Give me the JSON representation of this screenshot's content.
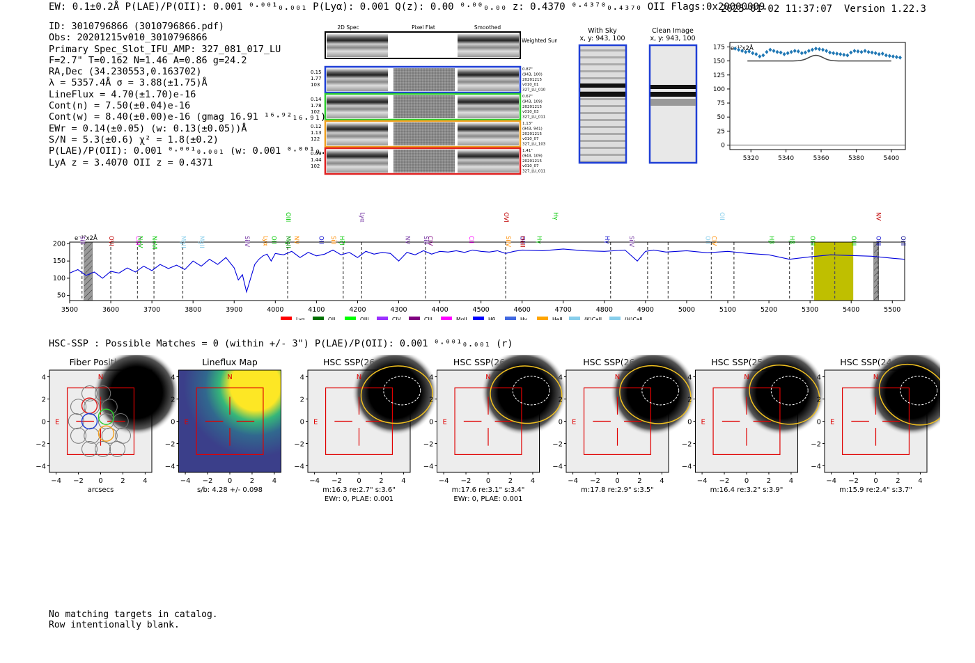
{
  "header": {
    "left_line": "EW: 0.1±0.2Å  P(LAE)/P(OII): 0.001 ⁰·⁰⁰¹₀.₀₀₁  P(Lyα): 0.001  Q(z): 0.00 ⁰·⁰⁰₀.₀₀  z: 0.4370 ⁰·⁴³⁷⁰₀.₄₃₇₀ OII   Flags:0x20000009",
    "datetime": "2025-01-02 11:37:07",
    "version": "Version 1.22.3"
  },
  "info": {
    "lines": [
      "ID: 3010796866 (3010796866.pdf)",
      "Obs: 20201215v010_3010796866",
      "Primary Spec_Slot_IFU_AMP: 327_081_017_LU",
      "F=2.7\"  T=0.162  N=1.46  A=0.86  g=24.2",
      "RA,Dec (34.230553,0.163702)",
      "λ = 5357.4Å   σ = 3.88(±1.75)Å",
      "LineFlux = 4.70(±1.70)e-16",
      "Cont(n) = 7.50(±0.04)e-16",
      "Cont(w) = 8.40(±0.00)e-16 (gmag 16.91 ¹⁶·⁹²₁₆.₉₁)",
      "EWr = 0.14(±0.05) (w: 0.13(±0.05))Å",
      "S/N = 5.3(±0.6)  χ² = 1.8(±0.2)",
      "P(LAE)/P(OII): 0.001 ⁰·⁰⁰¹₀.₀₀₁ (w: 0.001 ⁰·⁰⁰¹₀.₀₀₁)",
      "LyA z = 3.4070  OII z = 0.4371"
    ]
  },
  "cutouts": {
    "col_labels": [
      "2D Spec",
      "Pixel Flat",
      "Smoothed"
    ],
    "weighted_sum_label": "Weighted Sum",
    "rows": [
      {
        "left": [
          "0.15",
          "1.77",
          "103"
        ],
        "right": [
          "0.87\"",
          "(943, 100)",
          "20201215",
          "v010_01",
          "327_LU_010"
        ],
        "color": "#1f3fd6"
      },
      {
        "left": [
          "0.14",
          "1.78",
          "102"
        ],
        "right": [
          "0.67\"",
          "(943, 109)",
          "20201215",
          "v010_03",
          "327_LU_011"
        ],
        "color": "#2ecc2e"
      },
      {
        "left": [
          "0.12",
          "1.13",
          "122"
        ],
        "right": [
          "1.13\"",
          "(943, 941)",
          "20201215",
          "v010_07",
          "327_LU_103"
        ],
        "color": "#f0a020"
      },
      {
        "left": [
          "0.09",
          "1.44",
          "102"
        ],
        "right": [
          "1.41\"",
          "(943, 109)",
          "20201215",
          "v010_07",
          "327_LU_011"
        ],
        "color": "#e02020"
      }
    ]
  },
  "sky_panels": [
    {
      "title": "With Sky",
      "subtitle": "x, y: 943, 100"
    },
    {
      "title": "Clean Image",
      "subtitle": "x, y: 943, 100"
    }
  ],
  "zoom_chart": {
    "unit_label": "e⁻¹⁷x2Å",
    "yticks": [
      "0",
      "25",
      "50",
      "75",
      "100",
      "125",
      "150",
      "175"
    ],
    "xticks": [
      "5320",
      "5340",
      "5360",
      "5380",
      "5400"
    ]
  },
  "chart_data": [
    {
      "type": "scatter",
      "title": "zoom spectrum",
      "xlim": [
        5308,
        5408
      ],
      "ylim": [
        -8,
        183
      ],
      "x": [
        5311,
        5313,
        5315,
        5317,
        5319,
        5321,
        5323,
        5325,
        5327,
        5329,
        5331,
        5333,
        5335,
        5337,
        5339,
        5341,
        5343,
        5345,
        5347,
        5349,
        5351,
        5353,
        5355,
        5357,
        5359,
        5361,
        5363,
        5365,
        5367,
        5369,
        5371,
        5373,
        5375,
        5377,
        5379,
        5381,
        5383,
        5385,
        5387,
        5389,
        5391,
        5393,
        5395,
        5397,
        5399,
        5401,
        5403,
        5405
      ],
      "y": [
        172,
        170,
        168,
        166,
        167,
        164,
        162,
        158,
        160,
        166,
        170,
        168,
        166,
        165,
        162,
        164,
        166,
        168,
        167,
        164,
        165,
        168,
        170,
        172,
        171,
        170,
        168,
        165,
        164,
        163,
        162,
        161,
        160,
        165,
        168,
        167,
        166,
        168,
        166,
        165,
        164,
        162,
        163,
        160,
        159,
        158,
        157,
        156
      ],
      "fit_line": {
        "x0": 5318,
        "x1": 5400,
        "base": 150,
        "peak": 160,
        "center": 5357,
        "sigma": 4
      }
    },
    {
      "type": "line",
      "title": "full spectrum",
      "unit_label": "e⁻¹⁷x2Å",
      "xlim": [
        3500,
        5530
      ],
      "ylim": [
        35,
        205
      ],
      "xticks": [
        3500,
        3600,
        3700,
        3800,
        3900,
        4000,
        4100,
        4200,
        4300,
        4400,
        4500,
        4600,
        4700,
        4800,
        4900,
        5000,
        5100,
        5200,
        5300,
        5400,
        5500
      ],
      "yticks": [
        50,
        100,
        150,
        200
      ],
      "x": [
        3500,
        3520,
        3540,
        3560,
        3580,
        3600,
        3620,
        3640,
        3660,
        3680,
        3700,
        3720,
        3740,
        3760,
        3780,
        3800,
        3820,
        3840,
        3860,
        3880,
        3900,
        3910,
        3920,
        3930,
        3940,
        3950,
        3960,
        3970,
        3980,
        3990,
        4000,
        4020,
        4040,
        4060,
        4080,
        4100,
        4120,
        4140,
        4160,
        4180,
        4200,
        4220,
        4240,
        4260,
        4280,
        4300,
        4320,
        4340,
        4360,
        4380,
        4400,
        4420,
        4440,
        4460,
        4480,
        4500,
        4520,
        4540,
        4560,
        4580,
        4600,
        4650,
        4700,
        4750,
        4800,
        4850,
        4880,
        4900,
        4920,
        4950,
        5000,
        5050,
        5100,
        5150,
        5200,
        5250,
        5300,
        5350,
        5400,
        5450,
        5500,
        5530
      ],
      "y": [
        115,
        125,
        108,
        118,
        100,
        120,
        115,
        130,
        118,
        135,
        122,
        140,
        128,
        138,
        125,
        150,
        135,
        155,
        140,
        160,
        130,
        95,
        110,
        60,
        100,
        140,
        155,
        165,
        170,
        150,
        172,
        168,
        178,
        160,
        175,
        165,
        170,
        182,
        168,
        175,
        160,
        178,
        170,
        175,
        172,
        150,
        175,
        168,
        180,
        170,
        178,
        176,
        180,
        175,
        182,
        178,
        176,
        180,
        172,
        178,
        182,
        180,
        185,
        180,
        178,
        182,
        150,
        178,
        182,
        176,
        180,
        174,
        178,
        172,
        168,
        155,
        162,
        168,
        166,
        164,
        158,
        155
      ],
      "lines": [
        {
          "name": "SiII",
          "x": 3530,
          "color": "#7030a0"
        },
        {
          "name": "OVI",
          "x": 3600,
          "color": "#c00000"
        },
        {
          "name": "CIII",
          "x": 3665,
          "color": "#ff00ff"
        },
        {
          "name": "NeV",
          "x": 3670,
          "color": "#00c800"
        },
        {
          "name": "NeVI",
          "x": 3705,
          "color": "#00c800"
        },
        {
          "name": "MgII",
          "x": 3775,
          "color": "#87ceeb"
        },
        {
          "name": "MgII",
          "x": 3820,
          "color": "#87ceeb"
        },
        {
          "name": "SiIV",
          "x": 3930,
          "color": "#7030a0"
        },
        {
          "name": "Lyα",
          "x": 3975,
          "color": "#ff8c00"
        },
        {
          "name": "OII",
          "x": 3995,
          "color": "#00c800"
        },
        {
          "name": "NV",
          "x": 4050,
          "color": "#ff8c00"
        },
        {
          "name": "OIII",
          "x": 4030,
          "color": "#00c800"
        },
        {
          "name": "MgII",
          "x": 4030,
          "color": "#009000"
        },
        {
          "name": "OII",
          "x": 4110,
          "color": "#0000cc"
        },
        {
          "name": "SiII",
          "x": 4140,
          "color": "#ff8c00"
        },
        {
          "name": "HζI",
          "x": 4160,
          "color": "#00c800"
        },
        {
          "name": "Lyα",
          "x": 4210,
          "color": "#7030a0"
        },
        {
          "name": "NV",
          "x": 4320,
          "color": "#7030a0"
        },
        {
          "name": "CIV",
          "x": 4375,
          "color": "#800080"
        },
        {
          "name": "SiII",
          "x": 4365,
          "color": "#7030a0"
        },
        {
          "name": "CII",
          "x": 4475,
          "color": "#ff00ff"
        },
        {
          "name": "OVI",
          "x": 4560,
          "color": "#c00000"
        },
        {
          "name": "SiIV",
          "x": 4565,
          "color": "#ff8c00"
        },
        {
          "name": "OII",
          "x": 4600,
          "color": "#0000cc"
        },
        {
          "name": "HeII",
          "x": 4600,
          "color": "#c00000"
        },
        {
          "name": "Hγ",
          "x": 4640,
          "color": "#00c800"
        },
        {
          "name": "Hγ",
          "x": 4680,
          "color": "#00c800"
        },
        {
          "name": "Hγ",
          "x": 4805,
          "color": "#0000cc"
        },
        {
          "name": "SiIV",
          "x": 4865,
          "color": "#7030a0"
        },
        {
          "name": "OII",
          "x": 5050,
          "color": "#87ceeb"
        },
        {
          "name": "CIV",
          "x": 5065,
          "color": "#ff8c00"
        },
        {
          "name": "OII",
          "x": 5085,
          "color": "#87ceeb"
        },
        {
          "name": "Hβ",
          "x": 5205,
          "color": "#00c800"
        },
        {
          "name": "Hβ",
          "x": 5255,
          "color": "#00c800"
        },
        {
          "name": "OIII",
          "x": 5305,
          "color": "#00c800"
        },
        {
          "name": "OIII",
          "x": 5405,
          "color": "#00c800"
        },
        {
          "name": "NV",
          "x": 5465,
          "color": "#c00000"
        },
        {
          "name": "OIII",
          "x": 5465,
          "color": "#0000cc"
        },
        {
          "name": "OIII",
          "x": 5525,
          "color": "#00008b"
        }
      ],
      "dashed_lines": [
        3530,
        3600,
        3665,
        3705,
        3775,
        4030,
        4165,
        4210,
        4365,
        4560,
        4815,
        4905,
        4955,
        5060,
        5115,
        5250,
        5305,
        5360,
        5465
      ],
      "highlight_band": [
        5310,
        5405
      ],
      "hatched_bands": [
        [
          3535,
          3555
        ],
        [
          5455,
          5467
        ]
      ],
      "legend": [
        {
          "label": "Lyα",
          "color": "#ff0000"
        },
        {
          "label": "OII",
          "color": "#007000"
        },
        {
          "label": "OIII",
          "color": "#00ff00"
        },
        {
          "label": "CIV",
          "color": "#9b30ff"
        },
        {
          "label": "CIII",
          "color": "#800080"
        },
        {
          "label": "MgII",
          "color": "#ff00ff"
        },
        {
          "label": "Hβ",
          "color": "#0000ff"
        },
        {
          "label": "Hγ",
          "color": "#4169e1"
        },
        {
          "label": "HeII",
          "color": "#ffa500"
        },
        {
          "label": "(K)CaII",
          "color": "#87ceeb"
        },
        {
          "label": "(H)CaII",
          "color": "#87ceeb"
        }
      ]
    }
  ],
  "hsc": {
    "title_line": "HSC-SSP : Possible Matches = 0 (within +/- 3\")  P(LAE)/P(OII): 0.001 ⁰·⁰⁰¹₀.₀₀₁ (r)",
    "xticks": [
      "−4",
      "−2",
      "0",
      "2",
      "4"
    ],
    "yticks": [
      "4",
      "2",
      "0",
      "−2",
      "−4"
    ],
    "north": "N",
    "east": "E",
    "panels": [
      {
        "title": "Fiber Positions",
        "caption1": "arcsecs",
        "caption2": ""
      },
      {
        "title": "Lineflux Map",
        "caption1": "s/b: 4.28 +/- 0.098",
        "caption2": ""
      },
      {
        "title": "HSC SSP(26.8) g",
        "caption1": "m:16.3  re:2.7\"  s:3.6\"",
        "caption2": "EWr: 0, PLAE: 0.001"
      },
      {
        "title": "HSC SSP(26.4) r",
        "caption1": "m:17.6  re:3.1\"  s:3.4\"",
        "caption2": "EWr: 0, PLAE: 0.001"
      },
      {
        "title": "HSC SSP(26.4) i",
        "caption1": "m:17.8  re:2.9\"  s:3.5\"",
        "caption2": ""
      },
      {
        "title": "HSC SSP(25.5) z",
        "caption1": "m:16.4  re:3.2\"  s:3.9\"",
        "caption2": ""
      },
      {
        "title": "HSC SSP(24.7) y",
        "caption1": "m:15.9  re:2.4\"  s:3.7\"",
        "caption2": ""
      }
    ]
  },
  "footer": {
    "line1": "No matching targets in catalog.",
    "line2": "Row intentionally blank."
  }
}
